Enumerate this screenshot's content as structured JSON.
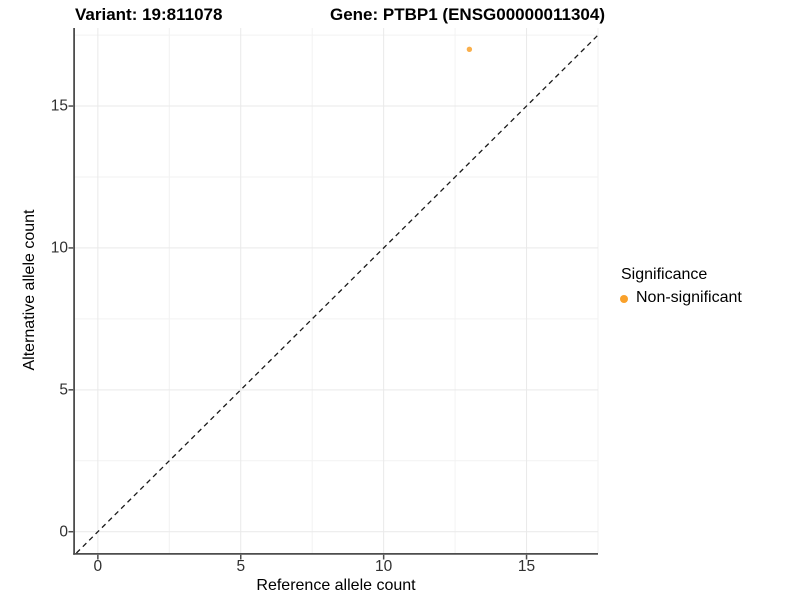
{
  "chart_data": {
    "type": "scatter",
    "titles": {
      "left": "Variant: 19:811078",
      "right": "Gene: PTBP1 (ENSG00000011304)"
    },
    "xlabel": "Reference allele count",
    "ylabel": "Alternative allele count",
    "xlim": [
      -0.8,
      17.5
    ],
    "ylim": [
      -0.75,
      17.75
    ],
    "x_ticks": [
      0,
      5,
      10,
      15
    ],
    "y_ticks": [
      0,
      5,
      10,
      15
    ],
    "x_minor_ticks": [
      2.5,
      7.5,
      12.5,
      17.5
    ],
    "y_minor_ticks": [
      2.5,
      7.5,
      12.5,
      17.5
    ],
    "grid": "major and minor gridlines, white panel",
    "reference_line": {
      "kind": "identity y=x",
      "style": "dashed",
      "color": "#1a1a1a"
    },
    "series": [
      {
        "name": "Non-significant",
        "marker": "circle",
        "color": "#F9A12B",
        "points": [
          {
            "x": 13,
            "y": 17
          }
        ]
      }
    ],
    "legend": {
      "title": "Significance",
      "position": "right",
      "items": [
        {
          "label": "Non-significant",
          "color": "#F9A12B",
          "marker": "dot"
        }
      ]
    }
  },
  "colors": {
    "background": "#FFFFFF",
    "axis_line": "#4D4D4D",
    "tick_text": "#303030",
    "grid_major": "#E9E9E9",
    "grid_minor": "#F2F2F2",
    "point_orange": "#F9A12B"
  }
}
